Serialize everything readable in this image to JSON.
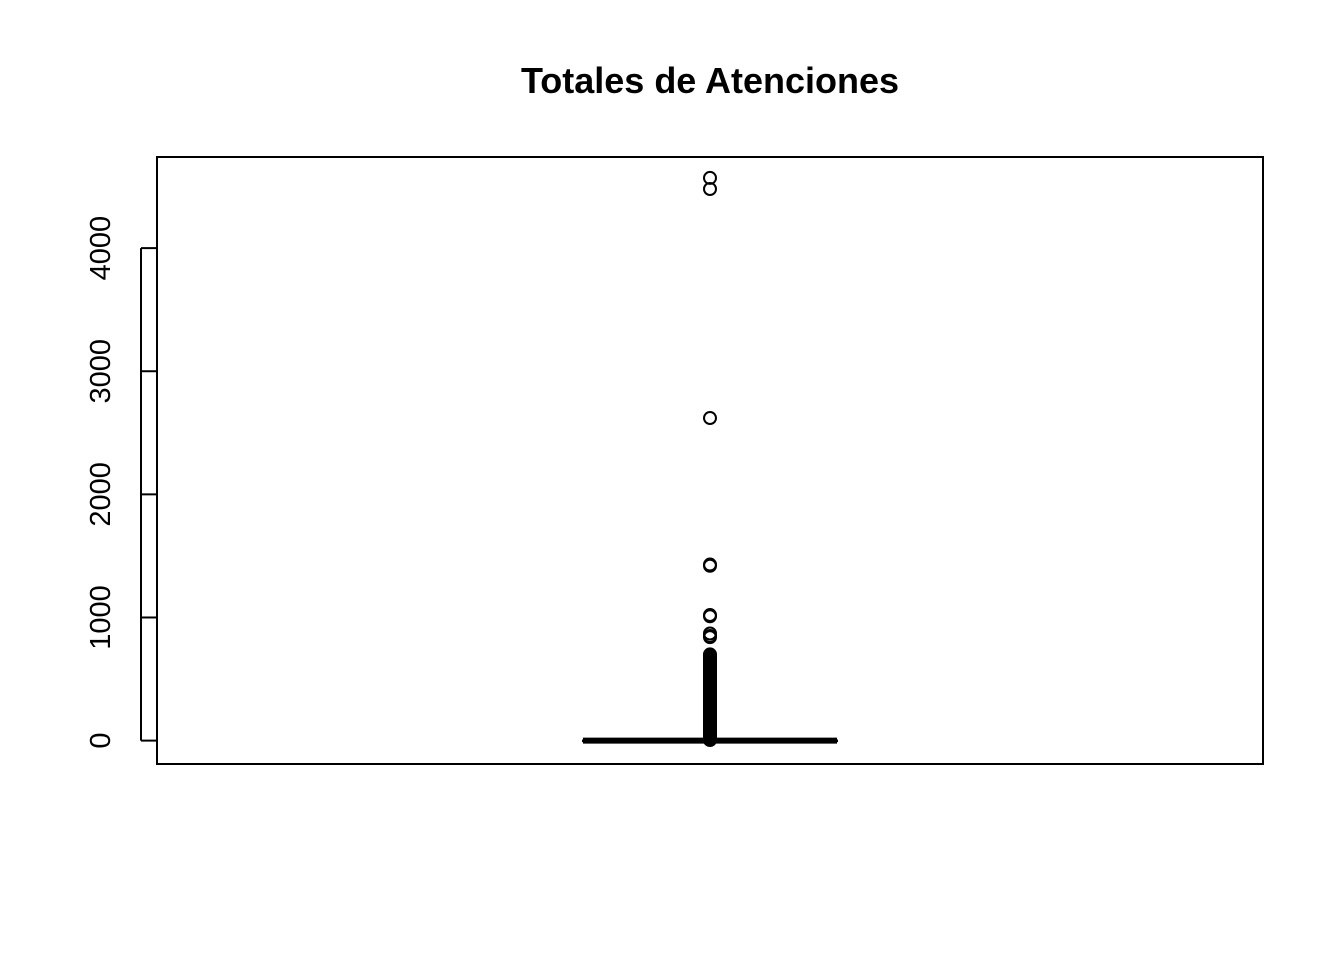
{
  "chart_data": {
    "type": "boxplot",
    "title": "Totales de Atenciones",
    "xlabel": "",
    "ylabel": "",
    "ylim": [
      -190,
      4740
    ],
    "y_ticks": [
      0,
      1000,
      2000,
      3000,
      4000
    ],
    "y_tick_labels": [
      "0",
      "1000",
      "2000",
      "3000",
      "4000"
    ],
    "box": {
      "min": 0,
      "q1": 0,
      "median": 0,
      "q3": 0,
      "max": 0
    },
    "outliers": [
      4570,
      4480,
      2620,
      1430,
      1420,
      1020,
      1010,
      870,
      850,
      840,
      700,
      690,
      680,
      670,
      660,
      650,
      640,
      630,
      620,
      610,
      600,
      590,
      580,
      570,
      560,
      550,
      540,
      530,
      520,
      510,
      500,
      490,
      480,
      470,
      460,
      450,
      440,
      430,
      420,
      410,
      400,
      390,
      380,
      370,
      360,
      350,
      340,
      330,
      320,
      310,
      300,
      290,
      280,
      270,
      260,
      250,
      240,
      230,
      220,
      210,
      200,
      190,
      180,
      170,
      160,
      150,
      140,
      130,
      120,
      110,
      100,
      90,
      80,
      70,
      60,
      50,
      40,
      30,
      20,
      10,
      5
    ],
    "grid": false,
    "legend": "none",
    "colors": {
      "ink": "#000000",
      "background": "#ffffff"
    }
  }
}
